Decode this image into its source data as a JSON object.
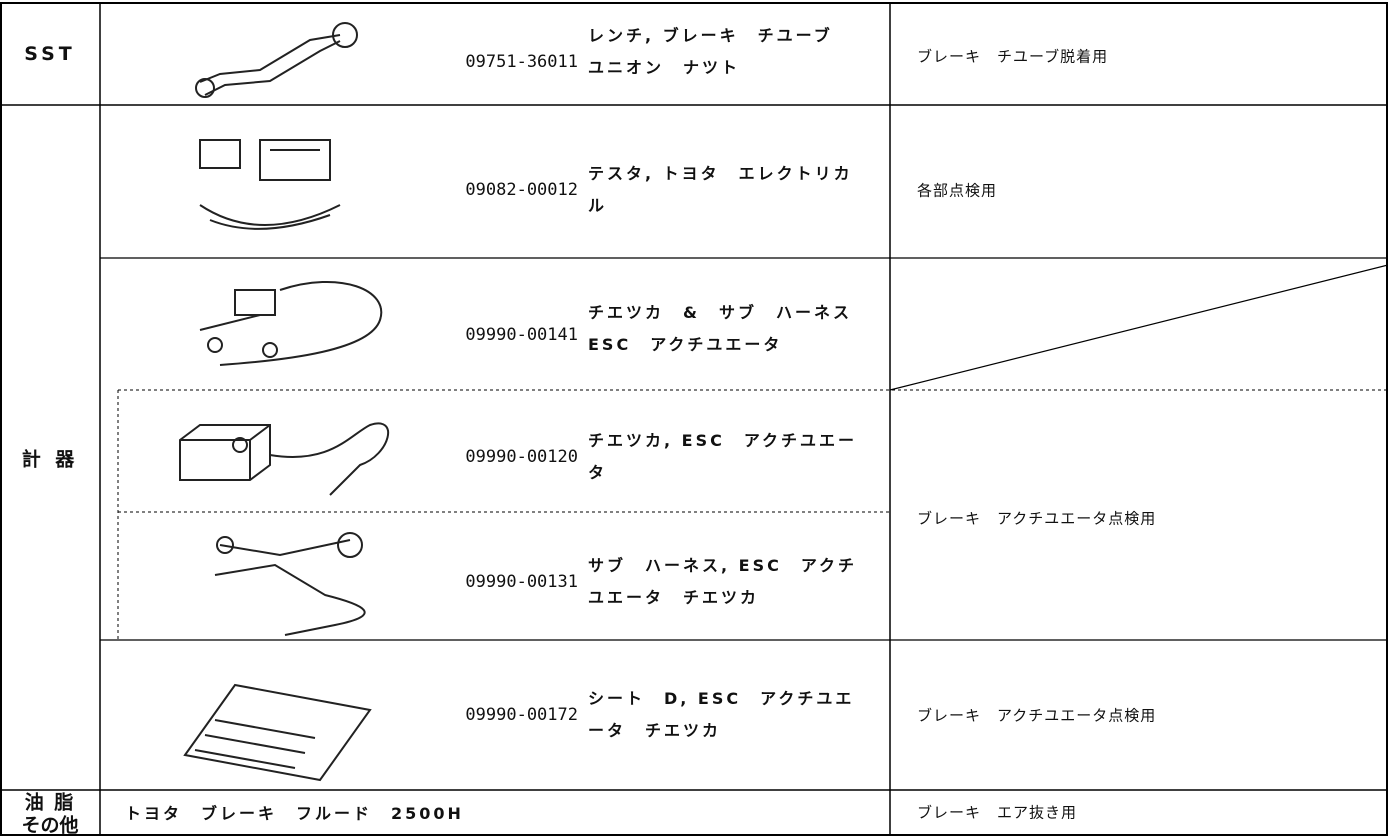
{
  "table": {
    "groups": [
      {
        "label_lines": [
          "SST"
        ],
        "items": [
          {
            "part_number": "09751-36011",
            "name_lines": [
              "レンチ, ブレーキ　チユーブ",
              "ユニオン　ナツト"
            ]
          }
        ]
      },
      {
        "label_lines": [
          "計 器"
        ],
        "items": [
          {
            "part_number": "09082-00012",
            "name_lines": [
              "テスタ, トヨタ　エレクトリカ",
              "ル"
            ]
          },
          {
            "part_number": "09990-00141",
            "name_lines": [
              "チエツカ　&　サブ　ハーネス",
              "ESC　アクチユエータ"
            ]
          },
          {
            "part_number": "09990-00120",
            "name_lines": [
              "チエツカ, ESC　アクチユエー",
              "タ"
            ]
          },
          {
            "part_number": "09990-00131",
            "name_lines": [
              "サブ　ハーネス, ESC　アクチ",
              "ユエータ　チエツカ"
            ]
          },
          {
            "part_number": "09990-00172",
            "name_lines": [
              "シート　D, ESC　アクチユエ",
              "ータ　チエツカ"
            ]
          }
        ]
      },
      {
        "label_lines": [
          "油 脂",
          "その他"
        ],
        "items": [
          {
            "name_lines": [
              "トヨタ　ブレーキ　フルード　2500H"
            ]
          }
        ]
      }
    ],
    "usages": [
      "ブレーキ　チユーブ脱着用",
      "各部点検用",
      "ブレーキ　アクチユエータ点検用",
      "ブレーキ　アクチユエータ点検用",
      "ブレーキ　エア抜き用"
    ]
  }
}
